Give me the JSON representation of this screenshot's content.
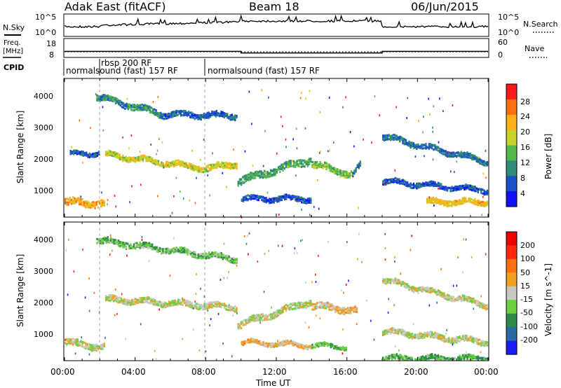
{
  "header": {
    "station": "Adak East (fitACF)",
    "beam": "Beam 18",
    "date": "06/Jun/2015"
  },
  "noise_panel": {
    "left_label": "N.Sky",
    "right_label": "N.Search",
    "left_ticks": [
      "10^5",
      "10^0"
    ],
    "right_ticks": [
      "10^5",
      "10^0"
    ]
  },
  "freq_panel": {
    "left_label_top": "Freq.",
    "left_label_unit": "[MHz]",
    "left_ticks": [
      "18",
      "8"
    ],
    "right_label": "Nave",
    "right_ticks": [
      "60",
      "0"
    ]
  },
  "cpid_panel": {
    "label": "CPID",
    "segments": [
      {
        "label": "normalsound (fast) 157 RF",
        "start_hour": 0,
        "end_hour": 8
      },
      {
        "label": "rbsp 200 RF",
        "start_hour": 2,
        "end_hour": 8
      },
      {
        "label": "normalsound (fast) 157 RF",
        "start_hour": 8,
        "end_hour": 24
      }
    ]
  },
  "power_panel": {
    "ylabel": "Slant Range [km]",
    "yticks": [
      "4000",
      "3000",
      "2000",
      "1000"
    ],
    "colorbar_label": "Power [dB]",
    "colorbar_ticks": [
      "28",
      "24",
      "20",
      "16",
      "12",
      "8",
      "4"
    ],
    "colors": [
      "#1010ff",
      "#1a50c8",
      "#2f8a78",
      "#54b848",
      "#c8d22a",
      "#ffae1a",
      "#ff6e10",
      "#ff1a1a"
    ]
  },
  "velocity_panel": {
    "ylabel": "Slant Range [km]",
    "yticks": [
      "4000",
      "3000",
      "2000",
      "1000"
    ],
    "colorbar_label": "Velocity [m s^-1]",
    "colorbar_ticks": [
      "200",
      "100",
      "50",
      "15",
      "-15",
      "-50",
      "-100",
      "-200"
    ],
    "colors": [
      "#1a1aff",
      "#2a6aa0",
      "#2e8a4a",
      "#6ad040",
      "#c8c8c0",
      "#f0a020",
      "#ff7010",
      "#ff2a10",
      "#ee0000"
    ]
  },
  "xaxis": {
    "label": "Time UT",
    "ticks": [
      "00:00",
      "04:00",
      "08:00",
      "12:00",
      "16:00",
      "20:00",
      "00:00"
    ]
  },
  "chart_data": {
    "type": "heatmap",
    "title": "Adak East (fitACF)   Beam 18   06/Jun/2015",
    "xlabel": "Time UT",
    "ylabel": "Slant Range [km]",
    "xlim_hours": [
      0,
      24
    ],
    "ylim_km": [
      200,
      4500
    ],
    "series": [
      {
        "name": "Power [dB]",
        "clim": [
          0,
          31
        ],
        "bands": [
          {
            "start": 0.0,
            "end": 2.3,
            "r0": 700,
            "r1": 650,
            "w": 220,
            "v": 22
          },
          {
            "start": 0.3,
            "end": 2.0,
            "r0": 2200,
            "r1": 2230,
            "w": 120,
            "v": 6
          },
          {
            "start": 1.8,
            "end": 5.5,
            "r0": 4000,
            "r1": 3450,
            "w": 180,
            "v": 10
          },
          {
            "start": 5.5,
            "end": 9.8,
            "r0": 3450,
            "r1": 3400,
            "w": 160,
            "v": 7
          },
          {
            "start": 2.3,
            "end": 8.0,
            "r0": 2180,
            "r1": 1750,
            "w": 160,
            "v": 18
          },
          {
            "start": 8.0,
            "end": 9.8,
            "r0": 1750,
            "r1": 1900,
            "w": 180,
            "v": 18
          },
          {
            "start": 9.8,
            "end": 14.0,
            "r0": 1350,
            "r1": 2050,
            "w": 220,
            "v": 12
          },
          {
            "start": 14.0,
            "end": 16.3,
            "r0": 1900,
            "r1": 1550,
            "w": 200,
            "v": 14
          },
          {
            "start": 16.3,
            "end": 16.8,
            "r0": 1550,
            "r1": 1900,
            "w": 150,
            "v": 8
          },
          {
            "start": 10.0,
            "end": 14.0,
            "r0": 800,
            "r1": 800,
            "w": 150,
            "v": 6
          },
          {
            "start": 18.0,
            "end": 24.0,
            "r0": 2750,
            "r1": 1950,
            "w": 160,
            "v": 8
          },
          {
            "start": 18.0,
            "end": 24.0,
            "r0": 1350,
            "r1": 1050,
            "w": 140,
            "v": 6
          },
          {
            "start": 20.5,
            "end": 24.0,
            "r0": 700,
            "r1": 700,
            "w": 160,
            "v": 20
          }
        ]
      },
      {
        "name": "Velocity [m s^-1]",
        "clim": [
          -250,
          250
        ],
        "bands": [
          {
            "start": 0.0,
            "end": 2.3,
            "r0": 800,
            "r1": 650,
            "w": 200,
            "v": -5
          },
          {
            "start": 1.8,
            "end": 9.8,
            "r0": 4000,
            "r1": 3400,
            "w": 170,
            "v": -60
          },
          {
            "start": 2.3,
            "end": 9.8,
            "r0": 2150,
            "r1": 1900,
            "w": 170,
            "v": -5
          },
          {
            "start": 9.8,
            "end": 14.0,
            "r0": 1350,
            "r1": 2100,
            "w": 200,
            "v": -5
          },
          {
            "start": 14.0,
            "end": 16.6,
            "r0": 1950,
            "r1": 1800,
            "w": 200,
            "v": 30
          },
          {
            "start": 10.0,
            "end": 14.0,
            "r0": 800,
            "r1": 700,
            "w": 120,
            "v": 30
          },
          {
            "start": 14.0,
            "end": 16.0,
            "r0": 700,
            "r1": 650,
            "w": 100,
            "v": -60
          },
          {
            "start": 18.0,
            "end": 24.0,
            "r0": 2750,
            "r1": 1950,
            "w": 160,
            "v": -5
          },
          {
            "start": 18.0,
            "end": 24.0,
            "r0": 1150,
            "r1": 800,
            "w": 160,
            "v": -5
          },
          {
            "start": 18.0,
            "end": 24.0,
            "r0": 300,
            "r1": 300,
            "w": 140,
            "v": -80
          }
        ]
      }
    ],
    "frequency_mhz": [
      {
        "start": 0,
        "end": 10,
        "value": 11
      },
      {
        "start": 10,
        "end": 18,
        "value": 10
      },
      {
        "start": 18,
        "end": 24,
        "value": 11
      }
    ]
  }
}
